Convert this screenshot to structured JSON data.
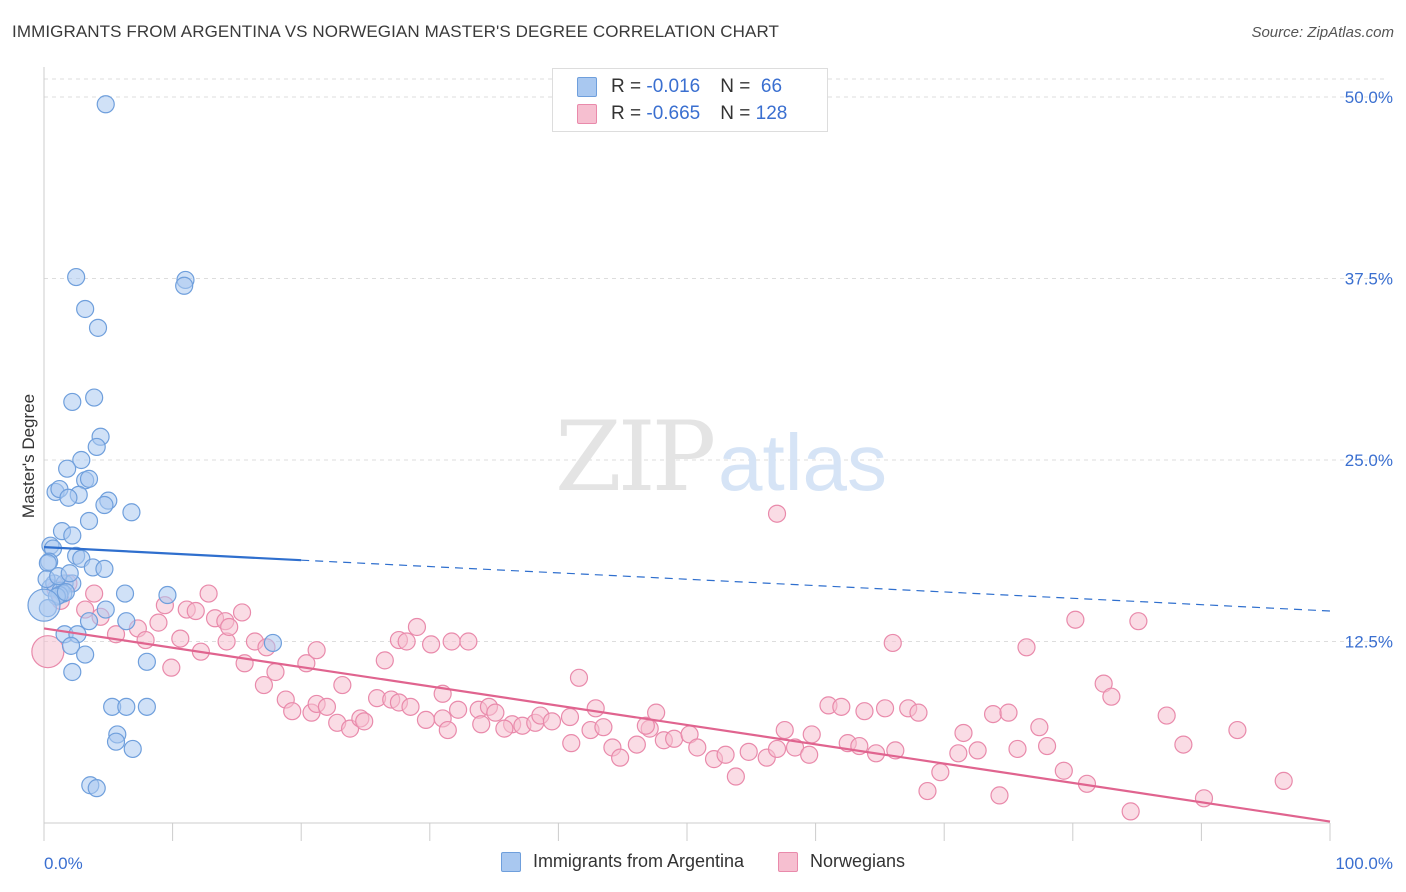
{
  "header": {
    "title": "IMMIGRANTS FROM ARGENTINA VS NORWEGIAN MASTER'S DEGREE CORRELATION CHART",
    "source": "Source: ZipAtlas.com"
  },
  "watermark": {
    "zip": "ZIP",
    "atlas": "atlas"
  },
  "legend_stats": [
    {
      "r_label": "R = ",
      "r_value": "-0.016",
      "n_label": "N = ",
      "n_value": " 66"
    },
    {
      "r_label": "R = ",
      "r_value": "-0.665",
      "n_label": "N = ",
      "n_value": "128"
    }
  ],
  "colors": {
    "blue_fill": "#a9c8f0",
    "blue_stroke": "#6f9fdc",
    "blue_line": "#2f6fce",
    "pink_fill": "#f6bfd0",
    "pink_stroke": "#e98aab",
    "pink_line": "#e0648f",
    "tick_label": "#3a6fd0",
    "grid": "#dddddd"
  },
  "chart_data": {
    "type": "scatter",
    "title": "IMMIGRANTS FROM ARGENTINA VS NORWEGIAN MASTER'S DEGREE CORRELATION CHART",
    "xlabel": "",
    "ylabel": "Master's Degree",
    "xlim": [
      0,
      100
    ],
    "ylim": [
      0,
      50
    ],
    "x_tick_labels": [
      "0.0%",
      "100.0%"
    ],
    "y_ticks": [
      12.5,
      25.0,
      37.5,
      50.0
    ],
    "y_tick_labels": [
      "12.5%",
      "25.0%",
      "37.5%",
      "50.0%"
    ],
    "grid": true,
    "legend_position": "bottom",
    "series": [
      {
        "name": "Immigrants from Argentina",
        "color": "#a9c8f0",
        "trend": {
          "x": [
            0,
            20
          ],
          "y": [
            19.0,
            18.1
          ],
          "extended_x": [
            20,
            100
          ],
          "extended_y": [
            18.1,
            14.6
          ]
        },
        "points": [
          [
            4.8,
            49.5
          ],
          [
            2.5,
            37.6
          ],
          [
            11.0,
            37.4
          ],
          [
            10.9,
            37.0
          ],
          [
            3.2,
            35.4
          ],
          [
            4.2,
            34.1
          ],
          [
            2.2,
            29.0
          ],
          [
            3.9,
            29.3
          ],
          [
            4.4,
            26.6
          ],
          [
            4.1,
            25.9
          ],
          [
            2.9,
            25.0
          ],
          [
            1.8,
            24.4
          ],
          [
            3.2,
            23.6
          ],
          [
            3.5,
            23.7
          ],
          [
            0.9,
            22.8
          ],
          [
            1.2,
            23.0
          ],
          [
            2.7,
            22.6
          ],
          [
            1.9,
            22.4
          ],
          [
            5.0,
            22.2
          ],
          [
            4.7,
            21.9
          ],
          [
            6.8,
            21.4
          ],
          [
            3.5,
            20.8
          ],
          [
            1.4,
            20.1
          ],
          [
            2.2,
            19.8
          ],
          [
            0.5,
            19.1
          ],
          [
            0.7,
            18.9
          ],
          [
            0.4,
            18.0
          ],
          [
            2.5,
            18.4
          ],
          [
            0.3,
            17.9
          ],
          [
            2.9,
            18.2
          ],
          [
            3.8,
            17.6
          ],
          [
            4.7,
            17.5
          ],
          [
            0.5,
            16.2
          ],
          [
            0.8,
            16.5
          ],
          [
            1.6,
            16.5
          ],
          [
            2.2,
            16.5
          ],
          [
            1.3,
            16.0
          ],
          [
            1.5,
            15.8
          ],
          [
            1.2,
            15.7
          ],
          [
            1.0,
            15.6
          ],
          [
            1.7,
            15.9
          ],
          [
            6.3,
            15.8
          ],
          [
            9.6,
            15.7
          ],
          [
            0.3,
            14.8
          ],
          [
            4.8,
            14.7
          ],
          [
            3.5,
            13.9
          ],
          [
            6.4,
            13.9
          ],
          [
            1.6,
            13.0
          ],
          [
            2.6,
            13.0
          ],
          [
            17.8,
            12.4
          ],
          [
            2.1,
            12.2
          ],
          [
            3.2,
            11.6
          ],
          [
            8.0,
            11.1
          ],
          [
            2.2,
            10.4
          ],
          [
            5.3,
            8.0
          ],
          [
            6.4,
            8.0
          ],
          [
            8.0,
            8.0
          ],
          [
            5.7,
            6.1
          ],
          [
            5.6,
            5.6
          ],
          [
            6.9,
            5.1
          ],
          [
            3.6,
            2.6
          ],
          [
            4.1,
            2.4
          ],
          [
            0.0,
            15.0
          ],
          [
            0.2,
            16.8
          ],
          [
            1.1,
            17.0
          ],
          [
            2.0,
            17.2
          ]
        ]
      },
      {
        "name": "Norwegians",
        "color": "#f6bfd0",
        "trend": {
          "x": [
            0,
            100
          ],
          "y": [
            13.4,
            0.1
          ]
        },
        "points": [
          [
            0.3,
            11.8
          ],
          [
            1.9,
            16.5
          ],
          [
            0.9,
            16.1
          ],
          [
            1.3,
            15.3
          ],
          [
            3.9,
            15.8
          ],
          [
            3.2,
            14.7
          ],
          [
            4.4,
            14.2
          ],
          [
            5.6,
            13.0
          ],
          [
            7.3,
            13.4
          ],
          [
            8.9,
            13.8
          ],
          [
            9.4,
            15.0
          ],
          [
            11.1,
            14.7
          ],
          [
            11.8,
            14.6
          ],
          [
            12.8,
            15.8
          ],
          [
            13.3,
            14.1
          ],
          [
            14.1,
            13.9
          ],
          [
            15.4,
            14.5
          ],
          [
            14.2,
            12.5
          ],
          [
            16.4,
            12.5
          ],
          [
            15.6,
            11.0
          ],
          [
            17.3,
            12.1
          ],
          [
            18.0,
            10.4
          ],
          [
            20.4,
            11.0
          ],
          [
            21.2,
            11.9
          ],
          [
            10.6,
            12.7
          ],
          [
            9.9,
            10.7
          ],
          [
            17.1,
            9.5
          ],
          [
            18.8,
            8.5
          ],
          [
            19.3,
            7.7
          ],
          [
            20.8,
            7.6
          ],
          [
            21.2,
            8.2
          ],
          [
            22.0,
            8.0
          ],
          [
            22.8,
            6.9
          ],
          [
            23.2,
            9.5
          ],
          [
            23.8,
            6.5
          ],
          [
            24.6,
            7.2
          ],
          [
            24.9,
            7.0
          ],
          [
            25.9,
            8.6
          ],
          [
            27.0,
            8.5
          ],
          [
            27.6,
            8.3
          ],
          [
            28.5,
            8.0
          ],
          [
            27.6,
            12.6
          ],
          [
            28.2,
            12.5
          ],
          [
            29.0,
            13.5
          ],
          [
            30.1,
            12.3
          ],
          [
            31.7,
            12.5
          ],
          [
            33.0,
            12.5
          ],
          [
            29.7,
            7.1
          ],
          [
            31.0,
            7.2
          ],
          [
            31.4,
            6.4
          ],
          [
            32.2,
            7.8
          ],
          [
            33.8,
            7.8
          ],
          [
            34.0,
            6.8
          ],
          [
            34.6,
            8.0
          ],
          [
            35.1,
            7.6
          ],
          [
            36.4,
            6.8
          ],
          [
            37.2,
            6.7
          ],
          [
            38.2,
            6.9
          ],
          [
            38.6,
            7.4
          ],
          [
            39.5,
            7.0
          ],
          [
            40.9,
            7.3
          ],
          [
            41.0,
            5.5
          ],
          [
            42.5,
            6.4
          ],
          [
            42.9,
            7.9
          ],
          [
            41.6,
            10.0
          ],
          [
            43.5,
            6.6
          ],
          [
            44.2,
            5.2
          ],
          [
            44.8,
            4.5
          ],
          [
            46.1,
            5.4
          ],
          [
            47.1,
            6.5
          ],
          [
            46.8,
            6.7
          ],
          [
            47.6,
            7.6
          ],
          [
            48.2,
            5.7
          ],
          [
            49.0,
            5.8
          ],
          [
            50.2,
            6.1
          ],
          [
            50.8,
            5.2
          ],
          [
            52.1,
            4.4
          ],
          [
            53.0,
            4.7
          ],
          [
            53.8,
            3.2
          ],
          [
            54.8,
            4.9
          ],
          [
            56.2,
            4.5
          ],
          [
            57.0,
            5.1
          ],
          [
            57.6,
            6.4
          ],
          [
            58.4,
            5.2
          ],
          [
            59.5,
            4.7
          ],
          [
            59.7,
            6.1
          ],
          [
            61.0,
            8.1
          ],
          [
            62.0,
            8.0
          ],
          [
            62.5,
            5.5
          ],
          [
            63.4,
            5.3
          ],
          [
            63.8,
            7.7
          ],
          [
            64.7,
            4.8
          ],
          [
            65.4,
            7.9
          ],
          [
            66.2,
            5.0
          ],
          [
            67.2,
            7.9
          ],
          [
            68.0,
            7.6
          ],
          [
            68.7,
            2.2
          ],
          [
            69.7,
            3.5
          ],
          [
            71.1,
            4.8
          ],
          [
            71.5,
            6.2
          ],
          [
            72.6,
            5.0
          ],
          [
            73.8,
            7.5
          ],
          [
            75.0,
            7.6
          ],
          [
            74.3,
            1.9
          ],
          [
            75.7,
            5.1
          ],
          [
            77.4,
            6.6
          ],
          [
            78.0,
            5.3
          ],
          [
            79.3,
            3.6
          ],
          [
            81.1,
            2.7
          ],
          [
            82.4,
            9.6
          ],
          [
            83.0,
            8.7
          ],
          [
            84.5,
            0.8
          ],
          [
            87.3,
            7.4
          ],
          [
            88.6,
            5.4
          ],
          [
            90.2,
            1.7
          ],
          [
            96.4,
            2.9
          ],
          [
            92.8,
            6.4
          ],
          [
            66.0,
            12.4
          ],
          [
            80.2,
            14.0
          ],
          [
            76.4,
            12.1
          ],
          [
            85.1,
            13.9
          ],
          [
            57.0,
            21.3
          ],
          [
            31.0,
            8.9
          ],
          [
            35.8,
            6.5
          ],
          [
            26.5,
            11.2
          ],
          [
            14.4,
            13.5
          ],
          [
            12.2,
            11.8
          ],
          [
            7.9,
            12.6
          ]
        ]
      }
    ]
  }
}
